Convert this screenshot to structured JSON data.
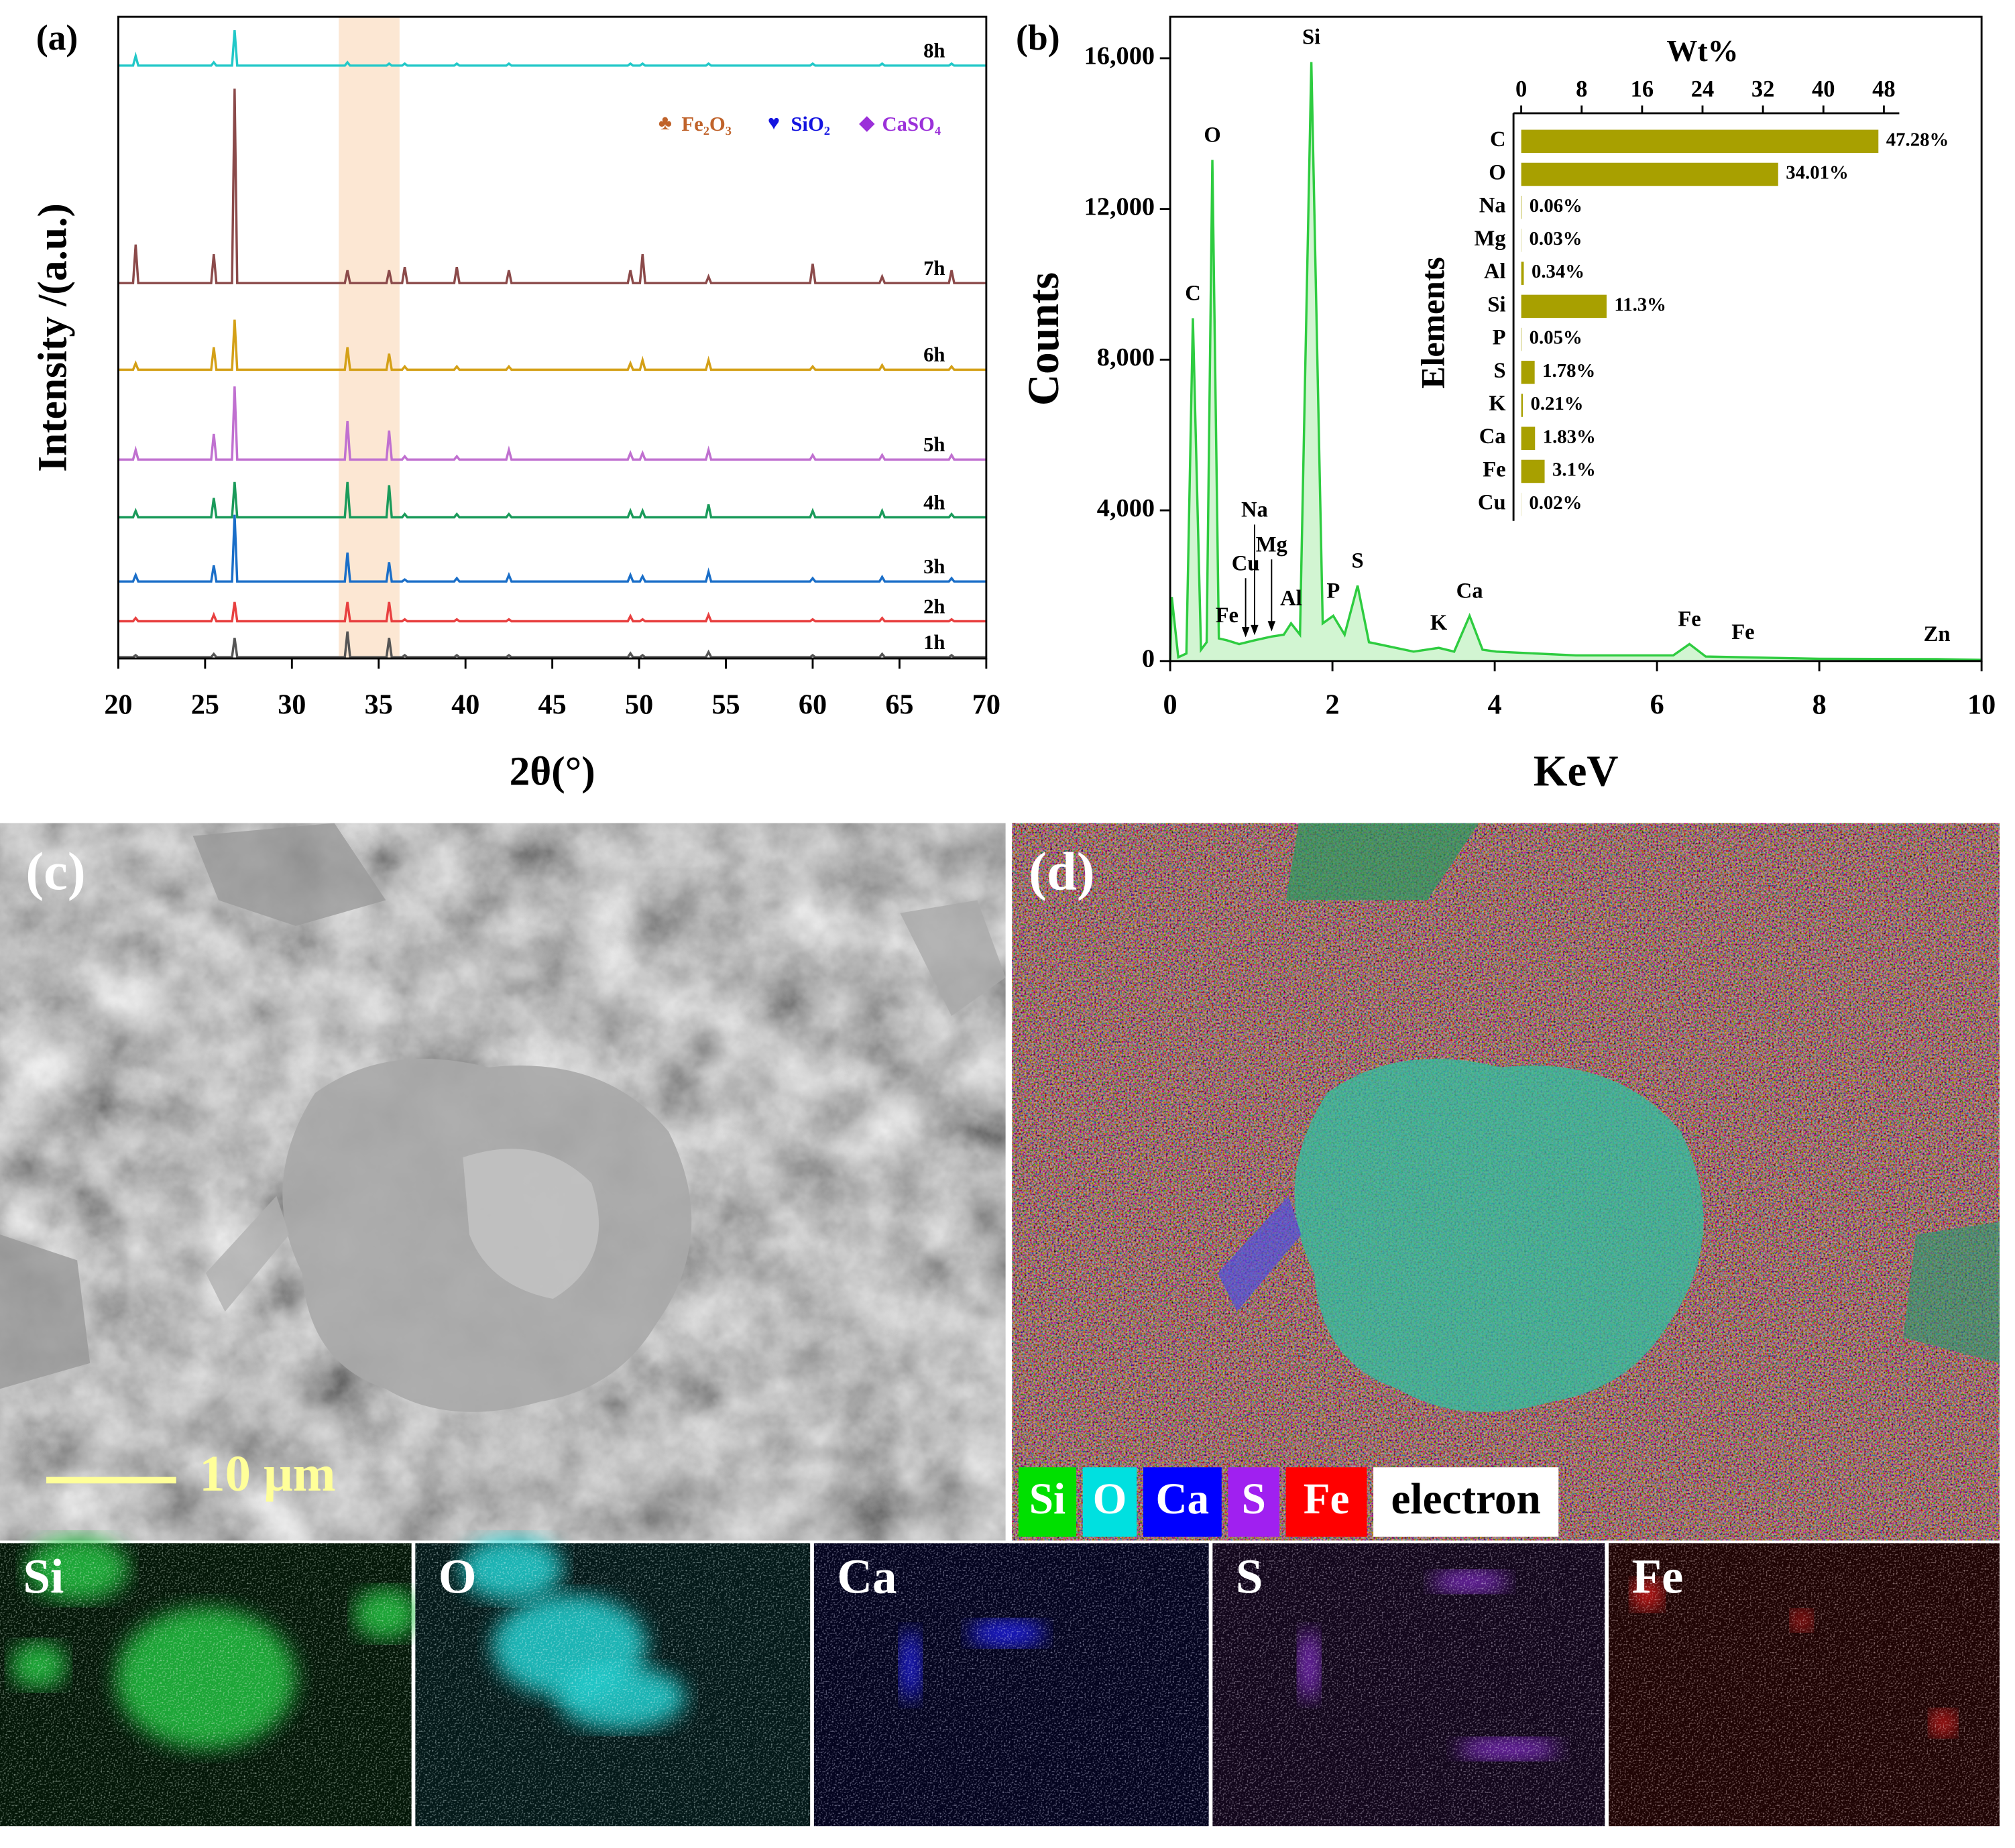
{
  "chart_data": [
    {
      "type": "line",
      "label": "(a)",
      "xlabel": "2θ(°)",
      "ylabel": "Intensity /(a.u.)",
      "xlim": [
        20,
        70
      ],
      "xticks": [
        20,
        25,
        30,
        35,
        40,
        45,
        50,
        55,
        60,
        65,
        70
      ],
      "ylim": [
        0,
        100
      ],
      "highlight_range": [
        32.7,
        36.2
      ],
      "phases": [
        {
          "symbol": "♣",
          "name": "Fe₂O₃",
          "color": "#c0632b"
        },
        {
          "symbol": "♥",
          "name": "SiO₂",
          "color": "#1414e0"
        },
        {
          "symbol": "◆",
          "name": "CaSO₄",
          "color": "#9b30d9"
        }
      ],
      "x": [
        20,
        20.85,
        21,
        21.15,
        25.35,
        25.5,
        25.65,
        26.55,
        26.7,
        26.85,
        33.05,
        33.2,
        33.35,
        35.45,
        35.6,
        35.75,
        36.35,
        36.5,
        36.65,
        39.35,
        39.5,
        39.65,
        42.35,
        42.5,
        42.65,
        49.35,
        49.5,
        49.65,
        50.05,
        50.2,
        50.35,
        53.85,
        54,
        54.15,
        59.85,
        60,
        60.15,
        63.85,
        64,
        64.15,
        67.85,
        68,
        68.15,
        70
      ],
      "series": [
        {
          "name": "8h",
          "color": "#22c8c8",
          "values": [
            92.4,
            92.4,
            93.9,
            92.4,
            92.4,
            92.9,
            92.4,
            92.4,
            97.9,
            92.4,
            92.4,
            92.9,
            92.4,
            92.4,
            92.7,
            92.4,
            92.4,
            92.7,
            92.4,
            92.4,
            92.7,
            92.4,
            92.4,
            92.7,
            92.4,
            92.4,
            92.7,
            92.4,
            92.4,
            92.7,
            92.4,
            92.4,
            92.7,
            92.4,
            92.4,
            92.7,
            92.4,
            92.4,
            92.7,
            92.4,
            92.4,
            92.7,
            92.4,
            92.4
          ]
        },
        {
          "name": "7h",
          "color": "#8b4a4a",
          "values": [
            58.5,
            58.5,
            64.5,
            58.5,
            58.5,
            63,
            58.5,
            58.5,
            88.8,
            58.5,
            58.5,
            60.5,
            58.5,
            58.5,
            60.5,
            58.5,
            58.5,
            61,
            58.5,
            58.5,
            61,
            58.5,
            58.5,
            60.5,
            58.5,
            58.5,
            60.5,
            58.5,
            58.5,
            63,
            58.5,
            58.5,
            59.5,
            58.5,
            58.5,
            61.5,
            58.5,
            58.5,
            59.5,
            58.5,
            58.5,
            60.5,
            58.5,
            58.5
          ]
        },
        {
          "name": "6h",
          "color": "#d4a017",
          "values": [
            45,
            45,
            46,
            45,
            45,
            48.5,
            45,
            45,
            52.8,
            45,
            45,
            48.5,
            45,
            45,
            47.5,
            45,
            45,
            45.5,
            45,
            45,
            45.5,
            45,
            45,
            45.5,
            45,
            45,
            46,
            45,
            45,
            46.5,
            45,
            45,
            46.5,
            45,
            45,
            45.5,
            45,
            45,
            45.7,
            45,
            45,
            45.5,
            45,
            45
          ]
        },
        {
          "name": "5h",
          "color": "#c070d0",
          "values": [
            31,
            31,
            32.5,
            31,
            31,
            35,
            31,
            31,
            42.4,
            31,
            31,
            37,
            31,
            31,
            35.5,
            31,
            31,
            31.5,
            31,
            31,
            31.5,
            31,
            31,
            32.5,
            31,
            31,
            32,
            31,
            31,
            32,
            31,
            31,
            32.5,
            31,
            31,
            31.7,
            31,
            31,
            31.7,
            31,
            31,
            31.7,
            31,
            31
          ]
        },
        {
          "name": "4h",
          "color": "#1a9a5a",
          "values": [
            22,
            22,
            23,
            22,
            22,
            25,
            22,
            22,
            27.5,
            22,
            22,
            27.5,
            22,
            22,
            27,
            22,
            22,
            22.5,
            22,
            22,
            22.5,
            22,
            22,
            22.5,
            22,
            22,
            23,
            22,
            22,
            23,
            22,
            22,
            24,
            22,
            22,
            23,
            22,
            22,
            23,
            22,
            22,
            22.5,
            22,
            22
          ]
        },
        {
          "name": "3h",
          "color": "#1a6ec8",
          "values": [
            12,
            12,
            13,
            12,
            12,
            14.5,
            12,
            12,
            22.4,
            12,
            12,
            16.5,
            12,
            12,
            15,
            12,
            12,
            12.3,
            12,
            12,
            12.5,
            12,
            12,
            13,
            12,
            12,
            13,
            12,
            12,
            12.8,
            12,
            12,
            13.5,
            12,
            12,
            12.5,
            12,
            12,
            12.7,
            12,
            12,
            12.5,
            12,
            12
          ]
        },
        {
          "name": "2h",
          "color": "#e84040",
          "values": [
            5.8,
            5.8,
            6.3,
            5.8,
            5.8,
            6.8,
            5.8,
            5.8,
            8.8,
            5.8,
            5.8,
            8.8,
            5.8,
            5.8,
            8.8,
            5.8,
            5.8,
            6.1,
            5.8,
            5.8,
            6.1,
            5.8,
            5.8,
            6.1,
            5.8,
            5.8,
            6.6,
            5.8,
            5.8,
            6.1,
            5.8,
            5.8,
            6.8,
            5.8,
            5.8,
            6.1,
            5.8,
            5.8,
            6.3,
            5.8,
            5.8,
            6.1,
            5.8,
            5.8
          ]
        },
        {
          "name": "1h",
          "color": "#555555",
          "values": [
            0.2,
            0.2,
            0.5,
            0.2,
            0.2,
            0.7,
            0.2,
            0.2,
            3.2,
            0.2,
            0.2,
            4.2,
            0.2,
            0.2,
            3.2,
            0.2,
            0.2,
            0.5,
            0.2,
            0.2,
            0.5,
            0.2,
            0.2,
            0.5,
            0.2,
            0.2,
            0.8,
            0.2,
            0.2,
            0.5,
            0.2,
            0.2,
            1,
            0.2,
            0.2,
            0.5,
            0.2,
            0.2,
            0.7,
            0.2,
            0.2,
            0.5,
            0.2,
            0.2
          ]
        }
      ]
    },
    {
      "type": "area",
      "label": "(b)",
      "xlabel": "KeV",
      "ylabel": "Counts",
      "xlim": [
        0,
        10
      ],
      "xticks": [
        0,
        2,
        4,
        6,
        8,
        10
      ],
      "ylim": [
        0,
        17100
      ],
      "yticks": [
        0,
        {
          "value": 4000,
          "label": "4,000"
        },
        {
          "value": 8000,
          "label": "8,000"
        },
        {
          "value": 12000,
          "label": "12,000"
        },
        {
          "value": 16000,
          "label": "16,000"
        }
      ],
      "color": "#2ecc40",
      "fill": "#d2f5d2",
      "x": [
        0,
        0.02,
        0.1,
        0.2,
        0.28,
        0.38,
        0.45,
        0.52,
        0.6,
        0.7,
        0.85,
        1.04,
        1.25,
        1.4,
        1.49,
        1.6,
        1.74,
        1.88,
        2.01,
        2.15,
        2.31,
        2.45,
        3.0,
        3.31,
        3.5,
        3.69,
        3.85,
        4.02,
        5.0,
        6.2,
        6.4,
        6.6,
        7.06,
        8.0,
        9.45,
        10
      ],
      "values": [
        0,
        1700,
        100,
        200,
        9100,
        300,
        500,
        13300,
        600,
        550,
        450,
        550,
        650,
        700,
        1000,
        700,
        15900,
        1000,
        1200,
        700,
        2000,
        500,
        250,
        350,
        250,
        1200,
        300,
        250,
        150,
        150,
        450,
        120,
        100,
        60,
        50,
        30
      ],
      "annotations": [
        {
          "text": "C",
          "x": 0.28
        },
        {
          "text": "O",
          "x": 0.52
        },
        {
          "text": "Si",
          "x": 1.74
        },
        {
          "text": "Fe",
          "x": 0.7
        },
        {
          "text": "Cu",
          "x": 0.93
        },
        {
          "text": "Na",
          "x": 1.04
        },
        {
          "text": "Mg",
          "x": 1.25
        },
        {
          "text": "Al",
          "x": 1.49
        },
        {
          "text": "P",
          "x": 2.01
        },
        {
          "text": "S",
          "x": 2.31
        },
        {
          "text": "K",
          "x": 3.31
        },
        {
          "text": "Ca",
          "x": 3.69
        },
        {
          "text": "Fe",
          "x": 6.4
        },
        {
          "text": "Fe",
          "x": 7.06
        },
        {
          "text": "Zn",
          "x": 9.45
        }
      ]
    },
    {
      "type": "hbar",
      "xlabel": "Wt%",
      "ylabel": "Elements",
      "xlim": [
        0,
        48
      ],
      "xticks": [
        0,
        8,
        16,
        24,
        32,
        40,
        48
      ],
      "color": "#a8a000",
      "categories": [
        "C",
        "O",
        "Na",
        "Mg",
        "Al",
        "Si",
        "P",
        "S",
        "K",
        "Ca",
        "Fe",
        "Cu"
      ],
      "values": [
        47.28,
        34.01,
        0.06,
        0.03,
        0.34,
        11.3,
        0.05,
        1.78,
        0.21,
        1.83,
        3.1,
        0.02
      ],
      "value_labels": [
        "47.28%",
        "34.01%",
        "0.06%",
        "0.03%",
        "0.34%",
        "11.3%",
        "0.05%",
        "1.78%",
        "0.21%",
        "1.83%",
        "3.1%",
        "0.02%"
      ]
    }
  ],
  "images": {
    "sem": {
      "label": "(c)",
      "scale_bar": "10 μm"
    },
    "mapping": {
      "label": "(d)",
      "legend": [
        {
          "text": "Si",
          "color": "#00e000"
        },
        {
          "text": "O",
          "color": "#00e0e0"
        },
        {
          "text": "Ca",
          "color": "#0000ff"
        },
        {
          "text": "S",
          "color": "#a020f0"
        },
        {
          "text": "Fe",
          "color": "#ff0000"
        },
        {
          "text": "electron",
          "color": "#ffffff"
        }
      ]
    },
    "maps": [
      {
        "text": "Si",
        "color": "#20c040"
      },
      {
        "text": "O",
        "color": "#20d0d0"
      },
      {
        "text": "Ca",
        "color": "#2020ff"
      },
      {
        "text": "S",
        "color": "#9030e0"
      },
      {
        "text": "Fe",
        "color": "#ff2020"
      }
    ]
  }
}
